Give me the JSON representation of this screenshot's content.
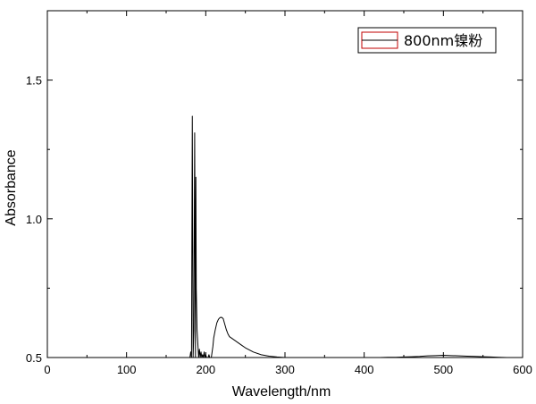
{
  "chart_data": {
    "type": "line",
    "title": "",
    "xlabel": "Wavelength/nm",
    "ylabel": "Absorbance",
    "xlim": [
      0,
      600
    ],
    "ylim": [
      0.5,
      1.75
    ],
    "xticks": [
      0,
      100,
      200,
      300,
      400,
      500,
      600
    ],
    "yticks": [
      0.5,
      1.0,
      1.5
    ],
    "xtick_labels": [
      "0",
      "100",
      "200",
      "300",
      "400",
      "500",
      "600"
    ],
    "ytick_labels": [
      "0.5",
      "1.0",
      "1.5"
    ],
    "grid": false,
    "legend": {
      "placement": "top-right",
      "entries": [
        "800nm镍粉"
      ]
    },
    "series": [
      {
        "name": "800nm镍粉",
        "color": "#000000",
        "x": [
          180,
          181,
          182,
          183,
          184,
          185,
          186,
          187,
          187.5,
          188,
          189,
          190,
          191,
          192,
          193,
          194,
          195,
          196,
          197,
          198,
          199,
          200,
          201,
          202,
          203,
          204,
          205,
          206,
          207,
          208,
          209,
          210,
          212,
          214,
          216,
          218,
          220,
          222,
          224,
          226,
          228,
          230,
          235,
          240,
          245,
          250,
          260,
          270,
          280,
          290,
          300,
          310,
          320,
          330,
          340,
          350,
          360,
          370,
          380,
          390,
          400,
          410,
          420,
          430,
          440,
          450,
          460,
          470,
          480,
          490,
          500,
          510,
          520,
          530,
          540,
          550,
          560,
          570,
          580
        ],
        "y": [
          0.5,
          0.52,
          0.5,
          1.37,
          0.5,
          0.6,
          1.31,
          0.5,
          1.15,
          0.75,
          0.6,
          0.55,
          0.5,
          0.53,
          0.5,
          0.52,
          0.5,
          0.51,
          0.5,
          0.52,
          0.5,
          0.51,
          0.5,
          0.5,
          0.5,
          0.51,
          0.5,
          0.5,
          0.5,
          0.52,
          0.54,
          0.57,
          0.6,
          0.625,
          0.638,
          0.644,
          0.645,
          0.64,
          0.62,
          0.6,
          0.585,
          0.575,
          0.565,
          0.555,
          0.545,
          0.535,
          0.52,
          0.51,
          0.505,
          0.502,
          0.5,
          0.5,
          0.5,
          0.5,
          0.5,
          0.5,
          0.5,
          0.5,
          0.5,
          0.5,
          0.5,
          0.5,
          0.5,
          0.501,
          0.501,
          0.502,
          0.503,
          0.504,
          0.506,
          0.507,
          0.508,
          0.507,
          0.506,
          0.505,
          0.504,
          0.503,
          0.502,
          0.501,
          0.5
        ]
      }
    ]
  }
}
